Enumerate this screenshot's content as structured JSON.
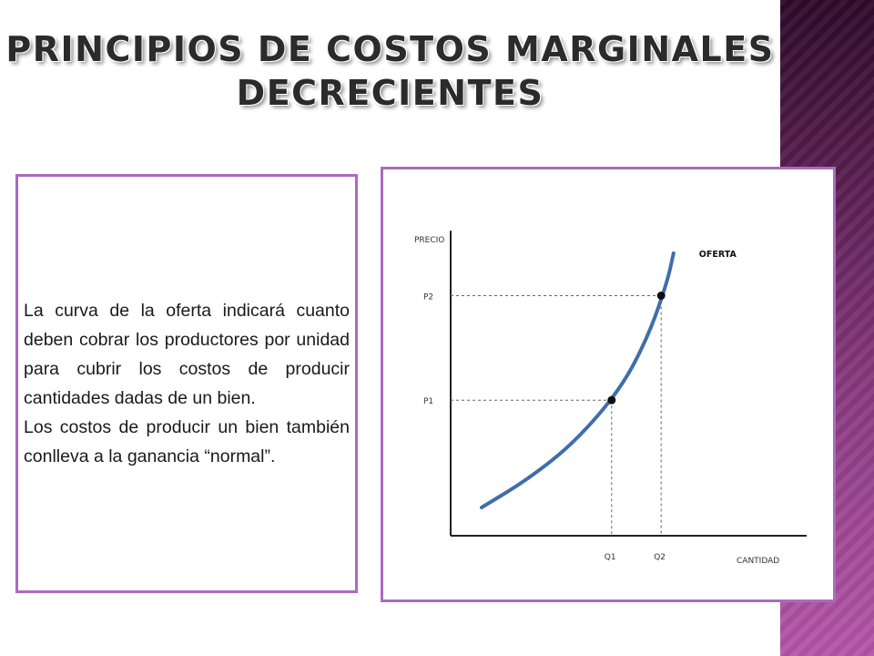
{
  "slide": {
    "title_lines": [
      "PRINCIPIOS DE COSTOS MARGINALES",
      "DECRECIENTES"
    ],
    "paragraphs": [
      "La curva de la oferta indicará cuanto deben cobrar los productores por unidad para cubrir los costos de producir cantidades dadas de un bien.",
      "Los costos de producir un bien también conlleva a la ganancia “normal”."
    ],
    "colors": {
      "frame_border": "#a86cc1",
      "curve": "#3f6fa8",
      "title_text": "#2b2b2b",
      "side_strip": "#8a3a80"
    }
  },
  "chart_data": {
    "type": "line",
    "x_axis_label": "CANTIDAD",
    "y_axis_label": "PRECIO",
    "x_ticks": [
      "Q1",
      "Q2"
    ],
    "y_ticks": [
      "P1",
      "P2"
    ],
    "series": [
      {
        "name": "OFERTA",
        "points": [
          [
            0.1,
            0.1
          ],
          [
            0.25,
            0.2
          ],
          [
            0.4,
            0.33
          ],
          [
            0.55,
            0.52
          ],
          [
            0.64,
            0.71
          ],
          [
            0.7,
            0.9
          ],
          [
            0.72,
            1.0
          ]
        ]
      }
    ],
    "points": [
      {
        "label_x": "Q1",
        "label_y": "P1",
        "x": 0.52,
        "y": 0.48
      },
      {
        "label_x": "Q2",
        "label_y": "P2",
        "x": 0.68,
        "y": 0.85
      }
    ],
    "grid": false,
    "legend": "inline label at top of curve"
  }
}
